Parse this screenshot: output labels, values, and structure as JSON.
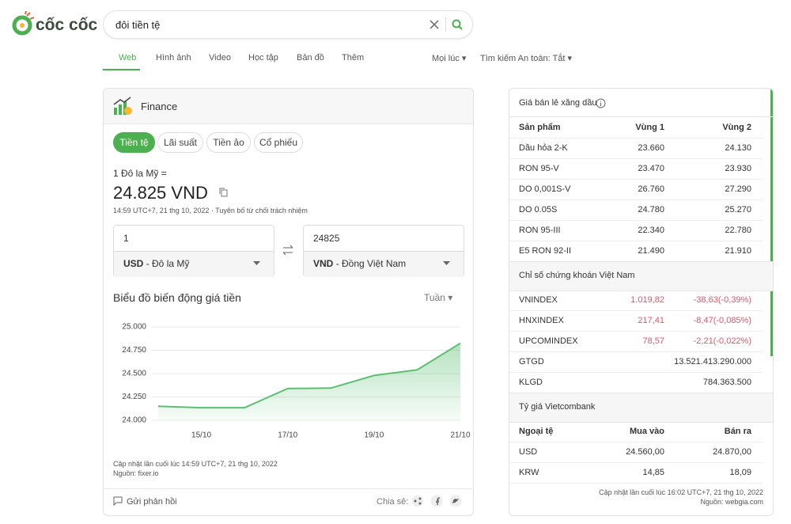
{
  "header": {
    "logo": "cốc cốc",
    "query": "đôi tiền tệ"
  },
  "nav": {
    "tabs": [
      "Web",
      "Hình ảnh",
      "Video",
      "Học tập",
      "Bản đồ",
      "Thêm"
    ],
    "time_filter": "Mọi lúc",
    "safe_search": "Tìm kiếm An toàn: Tắt"
  },
  "finance": {
    "title": "Finance",
    "chips": [
      "Tiền tệ",
      "Lãi suất",
      "Tiền ảo",
      "Cổ phiếu"
    ],
    "base": "1 Đô la Mỹ =",
    "rate": "24.825 VND",
    "timestamp": "14:59 UTC+7, 21 thg 10, 2022 · Tuyên bố từ chối trách nhiệm",
    "from_amount": "1",
    "from_code": "USD",
    "from_name": "- Đô la Mỹ",
    "to_amount": "24825",
    "to_code": "VND",
    "to_name": "- Đồng Việt Nam",
    "period": "Tuần",
    "updated": "Cập nhật lần cuối lúc 14:59 UTC+7, 21 thg 10, 2022",
    "source": "Nguồn: fixer.io",
    "feedback": "Gửi phản hồi",
    "share": "Chia sẻ:"
  },
  "chart_data": {
    "type": "area",
    "title": "Biểu đồ biến động giá tiền",
    "categories": [
      null,
      "15/10",
      null,
      "17/10",
      null,
      "19/10",
      null,
      "21/10"
    ],
    "values": [
      24150,
      24135,
      24135,
      24340,
      24345,
      24480,
      24540,
      24825
    ],
    "color": "#5cbf72",
    "ylim": [
      24000,
      25000
    ],
    "yticks": [
      {
        "value": 24000,
        "label": "24.000"
      },
      {
        "value": 24250,
        "label": "24.250"
      },
      {
        "value": 24500,
        "label": "24.500"
      },
      {
        "value": 24750,
        "label": "24.750"
      },
      {
        "value": 25000,
        "label": "25.000"
      }
    ],
    "grid": true
  },
  "fuel": {
    "title": "Giá bán lẻ xăng dầu",
    "headers": [
      "Sản phẩm",
      "Vùng 1",
      "Vùng 2"
    ],
    "rows": [
      [
        "Dầu hỏa 2-K",
        "23.660",
        "24.130"
      ],
      [
        "RON 95-V",
        "23.470",
        "23.930"
      ],
      [
        "DO 0,001S-V",
        "26.760",
        "27.290"
      ],
      [
        "DO 0.05S",
        "24.780",
        "25.270"
      ],
      [
        "RON 95-III",
        "22.340",
        "22.780"
      ],
      [
        "E5 RON 92-II",
        "21.490",
        "21.910"
      ]
    ]
  },
  "stocks": {
    "title": "Chỉ số chứng khoán Việt Nam",
    "rows": [
      [
        "VNINDEX",
        "1.019,82",
        "-38,63(-0,39%)"
      ],
      [
        "HNXINDEX",
        "217,41",
        "-8,47(-0,085%)"
      ],
      [
        "UPCOMINDEX",
        "78,57",
        "-2,21(-0,022%)"
      ],
      [
        "GTGD",
        "13.521.413.290.000"
      ],
      [
        "KLGD",
        "784.363.500"
      ]
    ]
  },
  "forex": {
    "title": "Tỷ giá Vietcombank",
    "headers": [
      "Ngoại tệ",
      "Mua vào",
      "Bán ra"
    ],
    "rows": [
      [
        "USD",
        "24.560,00",
        "24.870,00"
      ],
      [
        "KRW",
        "14,85",
        "18,09"
      ]
    ],
    "updated": "Cập nhật lần cuối lúc 16:02 UTC+7, 21 thg 10, 2022",
    "source": "Nguồn: webgia.com"
  }
}
